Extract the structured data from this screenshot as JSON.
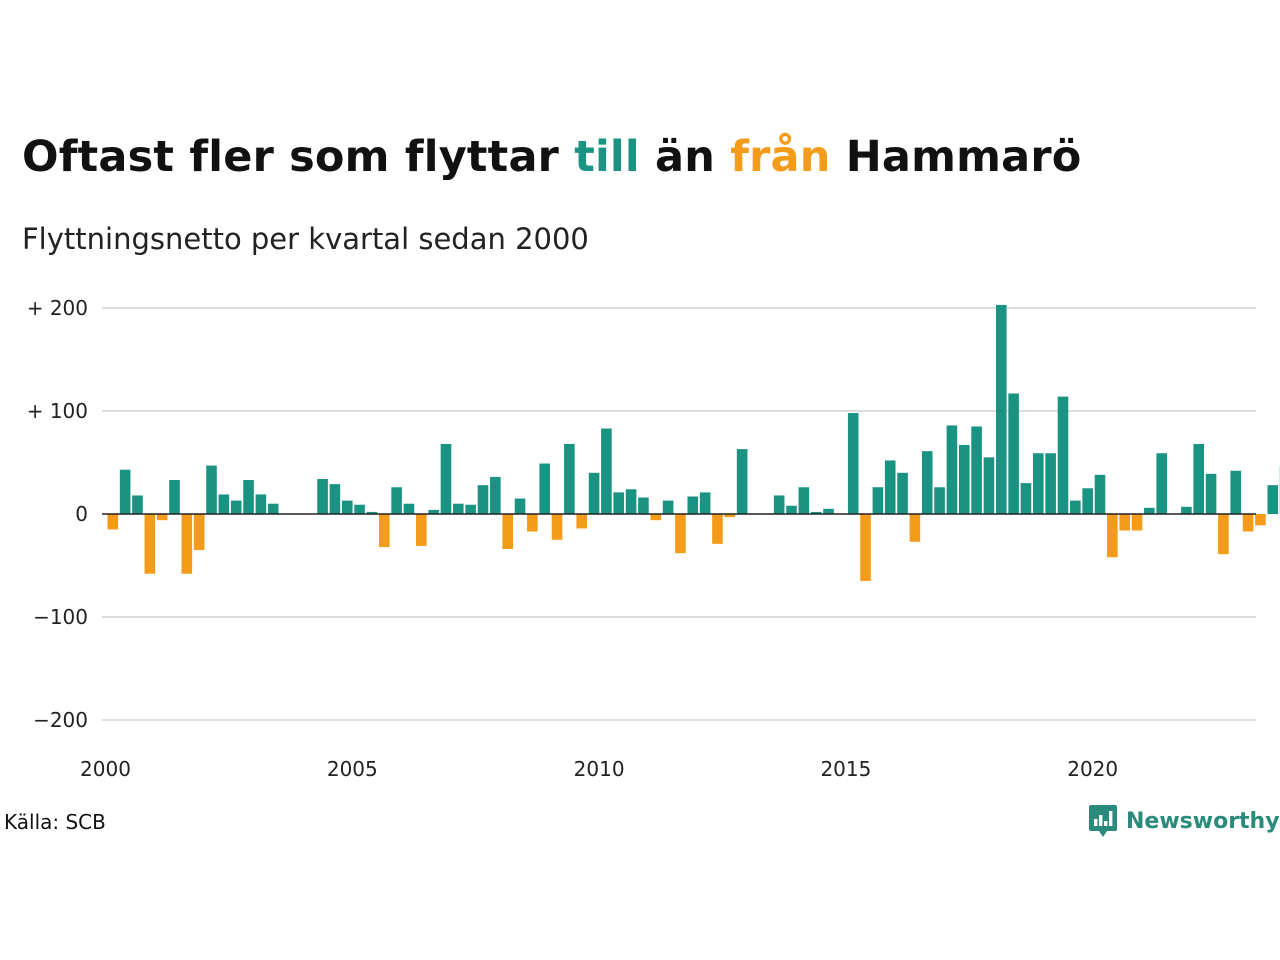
{
  "title": {
    "part1": "Oftast fler som flyttar ",
    "highlight_to": "till",
    "part2": " än ",
    "highlight_from": "från",
    "part3": " Hammarö"
  },
  "subtitle": "Flyttningsnetto per kvartal sedan 2000",
  "source": "Källa: SCB",
  "brand": "Newsworthy",
  "colors": {
    "positive": "#1a9383",
    "negative": "#f59b1a",
    "grid": "#dddddd",
    "zero_line": "#222222",
    "brand": "#2a8a7c"
  },
  "chart_data": {
    "type": "bar",
    "x_start_year": 2000,
    "periods_per_year": 4,
    "values": [
      -15,
      43,
      18,
      -58,
      -6,
      33,
      -58,
      -35,
      47,
      19,
      13,
      33,
      19,
      10,
      0,
      0,
      0,
      34,
      29,
      13,
      9,
      2,
      -32,
      26,
      10,
      -31,
      4,
      68,
      10,
      9,
      28,
      36,
      -34,
      15,
      -17,
      49,
      -25,
      68,
      -14,
      40,
      83,
      21,
      24,
      16,
      -6,
      13,
      -38,
      17,
      21,
      -29,
      -3,
      63,
      0,
      0,
      18,
      8,
      26,
      2,
      5,
      0,
      98,
      -65,
      26,
      52,
      40,
      -27,
      61,
      26,
      86,
      67,
      85,
      55,
      203,
      117,
      30,
      59,
      59,
      114,
      13,
      25,
      38,
      -42,
      -16,
      -16,
      6,
      59,
      0,
      7,
      68,
      39,
      -39,
      42,
      -17,
      -11,
      28,
      46
    ],
    "ylim": [
      -200,
      200
    ],
    "yticks": [
      {
        "value": 200,
        "label": "+ 200"
      },
      {
        "value": 100,
        "label": "+ 100"
      },
      {
        "value": 0,
        "label": "0"
      },
      {
        "value": -100,
        "label": "−100"
      },
      {
        "value": -200,
        "label": "−200"
      }
    ],
    "xticks": [
      {
        "year": 2000,
        "label": "2000"
      },
      {
        "year": 2005,
        "label": "2005"
      },
      {
        "year": 2010,
        "label": "2010"
      },
      {
        "year": 2015,
        "label": "2015"
      },
      {
        "year": 2020,
        "label": "2020"
      }
    ],
    "xlabel": "",
    "ylabel": "",
    "grid": true,
    "legend": "none"
  }
}
